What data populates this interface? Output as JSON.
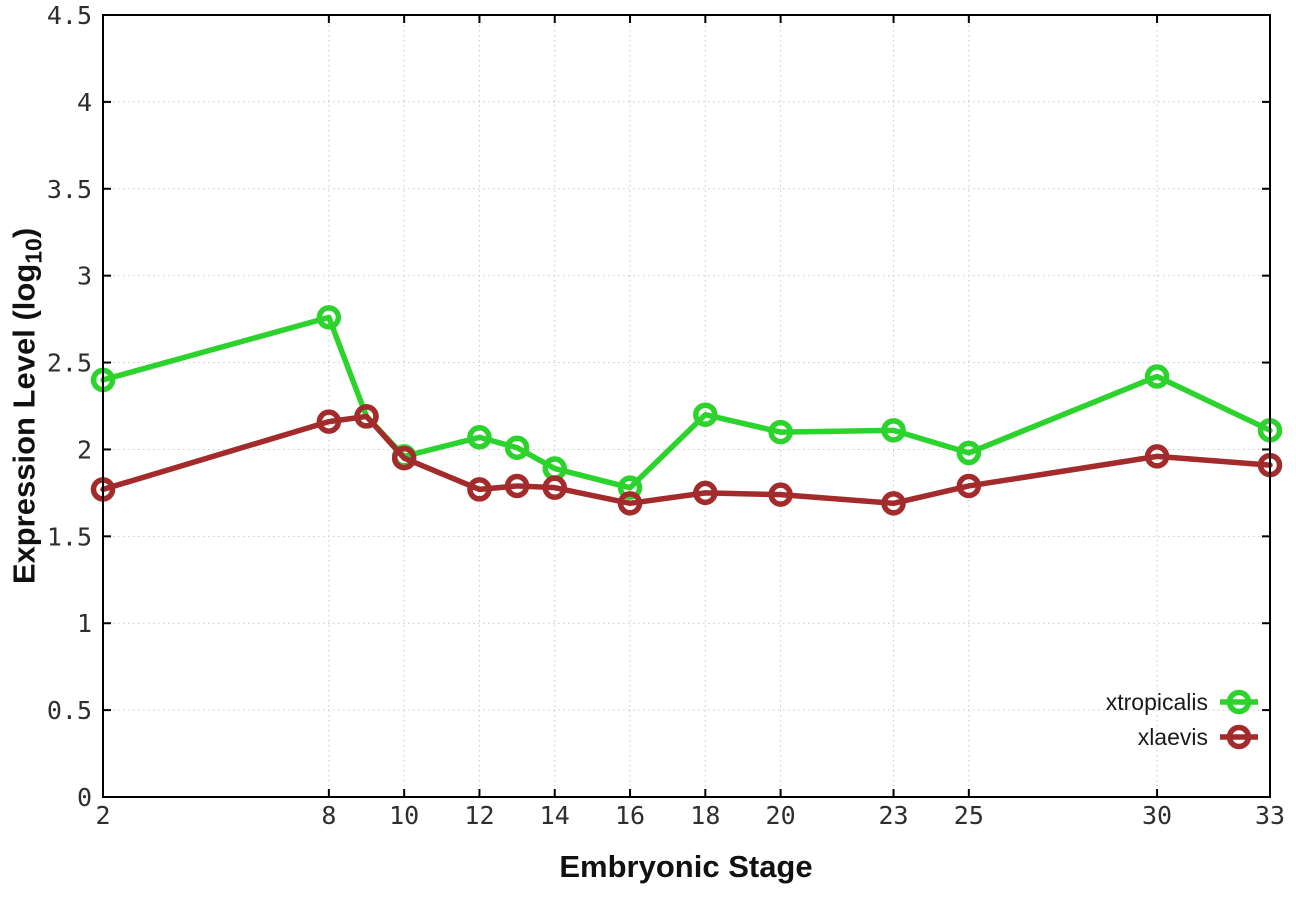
{
  "figure": {
    "xlabel": "Embryonic Stage",
    "ylabel_parts": {
      "prefix": "Expression Level (log",
      "sub": "10",
      "suffix": ")"
    }
  },
  "chart_data": {
    "type": "line",
    "title": "",
    "xlabel": "Embryonic Stage",
    "ylabel": "Expression Level (log10)",
    "x": [
      2,
      8,
      9,
      10,
      12,
      13,
      14,
      16,
      18,
      20,
      23,
      25,
      30,
      33
    ],
    "series": [
      {
        "name": "xtropicalis",
        "color": "#2cd32c",
        "values": [
          2.4,
          2.76,
          2.19,
          1.96,
          2.07,
          2.01,
          1.89,
          1.78,
          2.2,
          2.1,
          2.11,
          1.98,
          2.42,
          2.11
        ]
      },
      {
        "name": "xlaevis",
        "color": "#a32b2b",
        "values": [
          1.77,
          2.16,
          2.19,
          1.95,
          1.77,
          1.79,
          1.78,
          1.69,
          1.75,
          1.74,
          1.69,
          1.79,
          1.96,
          1.91
        ]
      }
    ],
    "xticks": [
      2,
      8,
      10,
      12,
      14,
      16,
      18,
      20,
      23,
      25,
      30,
      33
    ],
    "xtick_labels": [
      "2",
      "8",
      "10",
      "12",
      "14",
      "16",
      "18",
      "20",
      "23",
      "25",
      "30",
      "33"
    ],
    "yticks": [
      0,
      0.5,
      1,
      1.5,
      2,
      2.5,
      3,
      3.5,
      4,
      4.5
    ],
    "ytick_labels": [
      "0",
      "0.5",
      "1",
      "1.5",
      "2",
      "2.5",
      "3",
      "3.5",
      "4",
      "4.5"
    ],
    "xlim": [
      2,
      33
    ],
    "ylim": [
      0,
      4.5
    ],
    "grid": true,
    "grid_style": "dotted",
    "legend_position": "inside-bottom-right",
    "marker": "open-circle",
    "colors": {
      "background": "#ffffff",
      "grid": "#c8c8c8",
      "axis": "#000000",
      "tick_text": "#2e2e2e"
    }
  }
}
